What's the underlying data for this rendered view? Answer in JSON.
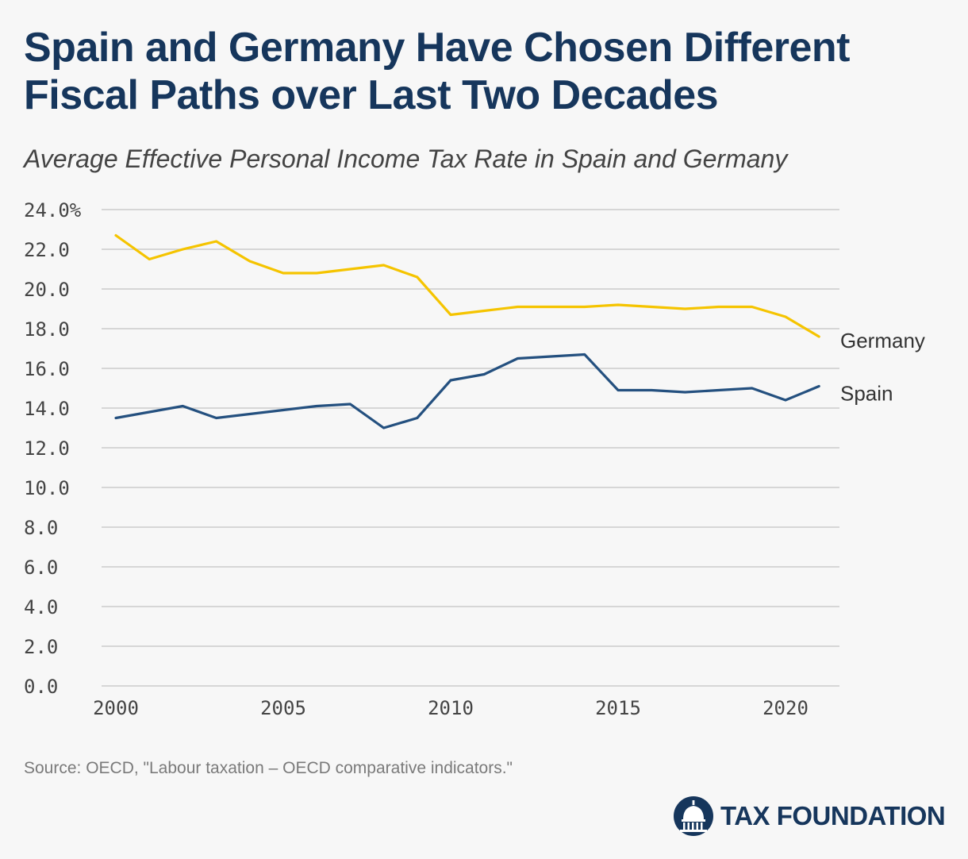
{
  "chart_data": {
    "type": "line",
    "title": "Spain and Germany Have Chosen Different Fiscal Paths over Last Two Decades",
    "subtitle": "Average Effective Personal Income Tax Rate in Spain and Germany",
    "x": [
      2000,
      2001,
      2002,
      2003,
      2004,
      2005,
      2006,
      2007,
      2008,
      2009,
      2010,
      2011,
      2012,
      2013,
      2014,
      2015,
      2016,
      2017,
      2018,
      2019,
      2020,
      2021
    ],
    "series": [
      {
        "name": "Germany",
        "color": "#f5c400",
        "values": [
          22.7,
          21.5,
          22.0,
          22.4,
          21.4,
          20.8,
          20.8,
          21.0,
          21.2,
          20.6,
          18.7,
          18.9,
          19.1,
          19.1,
          19.1,
          19.2,
          19.1,
          19.0,
          19.1,
          19.1,
          18.6,
          17.6
        ]
      },
      {
        "name": "Spain",
        "color": "#24507f",
        "values": [
          13.5,
          13.8,
          14.1,
          13.5,
          13.7,
          13.9,
          14.1,
          14.2,
          13.0,
          13.5,
          15.4,
          15.7,
          16.5,
          16.6,
          16.7,
          14.9,
          14.9,
          14.8,
          14.9,
          15.0,
          14.4,
          15.1
        ]
      }
    ],
    "yticks": [
      "0.0",
      "2.0",
      "4.0",
      "6.0",
      "8.0",
      "10.0",
      "12.0",
      "14.0",
      "16.0",
      "18.0",
      "20.0",
      "22.0",
      "24.0%"
    ],
    "xticks": [
      "2000",
      "2005",
      "2010",
      "2015",
      "2020"
    ],
    "ylim": [
      0,
      24
    ],
    "xlim": [
      2000,
      2021
    ],
    "grid": true,
    "gridline_color": "#cccccc"
  },
  "source": "Source: OECD, \"Labour taxation – OECD comparative indicators.\"",
  "brand": {
    "name": "TAX FOUNDATION",
    "color": "#16365c",
    "icon": "capitol-dome-icon"
  }
}
